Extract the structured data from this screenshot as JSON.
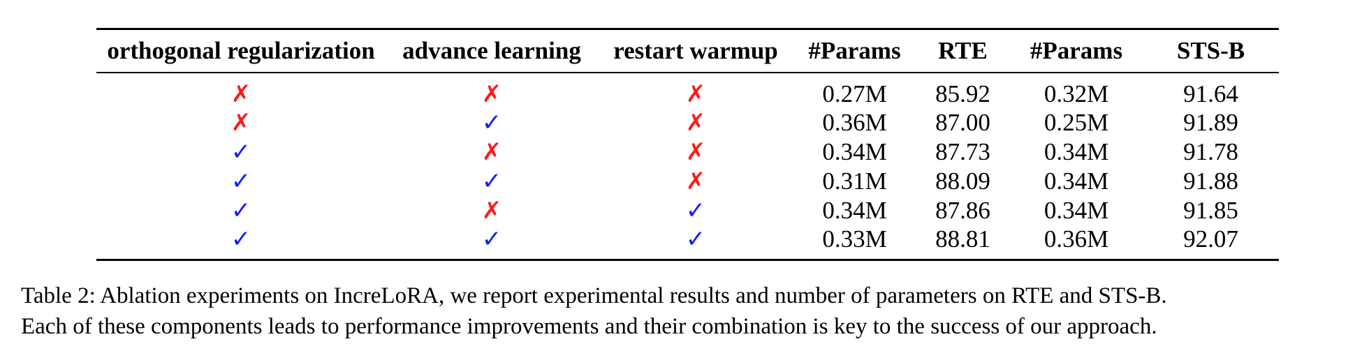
{
  "table": {
    "headers": [
      "orthogonal regularization",
      "advance learning",
      "restart warmup",
      "#Params",
      "RTE",
      "#Params",
      "STS-B"
    ],
    "symbols": {
      "yes": "✓",
      "no": "✗"
    },
    "colors": {
      "check": "#1a1aff",
      "cross": "#ff1a1a"
    },
    "rows": [
      {
        "orthogonal": "no",
        "advance": "no",
        "restart": "no",
        "params_rte": "0.27M",
        "rte": "85.92",
        "params_stsb": "0.32M",
        "stsb": "91.64"
      },
      {
        "orthogonal": "no",
        "advance": "yes",
        "restart": "no",
        "params_rte": "0.36M",
        "rte": "87.00",
        "params_stsb": "0.25M",
        "stsb": "91.89"
      },
      {
        "orthogonal": "yes",
        "advance": "no",
        "restart": "no",
        "params_rte": "0.34M",
        "rte": "87.73",
        "params_stsb": "0.34M",
        "stsb": "91.78"
      },
      {
        "orthogonal": "yes",
        "advance": "yes",
        "restart": "no",
        "params_rte": "0.31M",
        "rte": "88.09",
        "params_stsb": "0.34M",
        "stsb": "91.88"
      },
      {
        "orthogonal": "yes",
        "advance": "no",
        "restart": "yes",
        "params_rte": "0.34M",
        "rte": "87.86",
        "params_stsb": "0.34M",
        "stsb": "91.85"
      },
      {
        "orthogonal": "yes",
        "advance": "yes",
        "restart": "yes",
        "params_rte": "0.33M",
        "rte": "88.81",
        "params_stsb": "0.36M",
        "stsb": "92.07"
      }
    ]
  },
  "caption": {
    "line1": "Table 2: Ablation experiments on IncreLoRA, we report experimental results and number of parameters on RTE and STS-B.",
    "line2": "Each of these components leads to performance improvements and their combination is key to the success of our approach."
  }
}
